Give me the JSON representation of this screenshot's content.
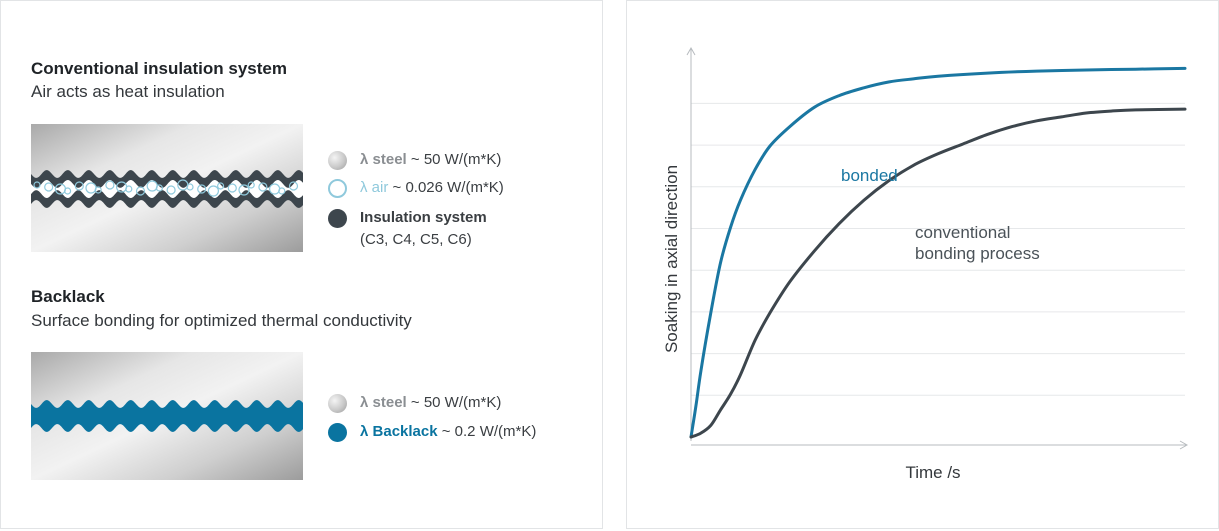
{
  "conventional": {
    "title": "Conventional insulation system",
    "subtitle": "Air acts as heat insulation",
    "legend": [
      {
        "symbol": "λ",
        "name": "steel",
        "value": "~ 50 W/(m*K)",
        "color": "#9a9a9a"
      },
      {
        "symbol": "λ",
        "name": "air",
        "value": "~ 0.026 W/(m*K)",
        "color": "#8fc9dc"
      },
      {
        "name": "Insulation system",
        "detail": "(C3, C4, C5, C6)",
        "color": "#3d464d"
      }
    ]
  },
  "backlack": {
    "title": "Backlack",
    "subtitle": "Surface bonding for optimized thermal conductivity",
    "legend": [
      {
        "symbol": "λ",
        "name": "steel",
        "value": "~ 50 W/(m*K)",
        "color": "#9a9a9a"
      },
      {
        "symbol": "λ",
        "name": "Backlack",
        "value": "~ 0.2 W/(m*K)",
        "color": "#0a74a0"
      }
    ]
  },
  "chart_data": {
    "type": "line",
    "xlabel": "Time /s",
    "ylabel": "Soaking in axial direction",
    "grid": true,
    "xlim": [
      0,
      100
    ],
    "ylim": [
      0,
      100
    ],
    "series": [
      {
        "name": "bonded",
        "color": "#1a77a2",
        "x": [
          0,
          1,
          2,
          4,
          6,
          8,
          10,
          13,
          16,
          20,
          25,
          30,
          35,
          40,
          45,
          50,
          60,
          70,
          80,
          90,
          100
        ],
        "y": [
          0,
          8,
          17,
          32,
          45,
          54,
          61,
          69,
          75,
          80,
          85,
          88,
          90,
          91.5,
          92.3,
          93,
          93.8,
          94.3,
          94.6,
          94.8,
          95
        ]
      },
      {
        "name": "conventional\nbonding process",
        "color": "#3d464d",
        "x": [
          0,
          2,
          4,
          6,
          8,
          10,
          13,
          16,
          20,
          25,
          30,
          35,
          40,
          45,
          50,
          55,
          60,
          65,
          70,
          75,
          80,
          85,
          90,
          100
        ],
        "y": [
          0,
          1,
          3,
          7,
          11,
          16,
          25,
          32,
          40,
          48,
          55,
          61,
          66,
          70,
          73,
          75.5,
          78,
          80,
          81.5,
          82.5,
          83.5,
          84,
          84.3,
          84.5
        ]
      }
    ]
  }
}
